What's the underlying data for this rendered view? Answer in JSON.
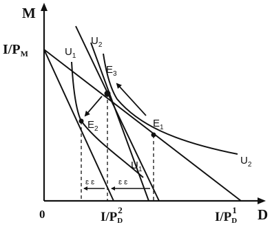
{
  "axes": {
    "y_label": "M",
    "x_label": "D",
    "origin": "0",
    "y_intercept": {
      "base": "I/P",
      "sub": "M"
    },
    "x_intercept_2": {
      "base": "I/P",
      "sub": "D",
      "sup": "2"
    },
    "x_intercept_1": {
      "base": "I/P",
      "sub": "D",
      "sup": "1"
    }
  },
  "curves": {
    "u1_top": "U",
    "u1_top_sub": "1",
    "u1_bottom": "U",
    "u1_bottom_sub": "1",
    "u2_top": "U",
    "u2_top_sub": "2",
    "u2_right": "U",
    "u2_right_sub": "2"
  },
  "points": {
    "e1": "E",
    "e1_sub": "1",
    "e2": "E",
    "e2_sub": "2",
    "e3": "E",
    "e3_sub": "3"
  },
  "effect_marks": {
    "substitution": "ɛ ɛ",
    "income": "ɛ ɛ"
  },
  "style": {
    "ink": "#111111",
    "background": "#ffffff"
  }
}
